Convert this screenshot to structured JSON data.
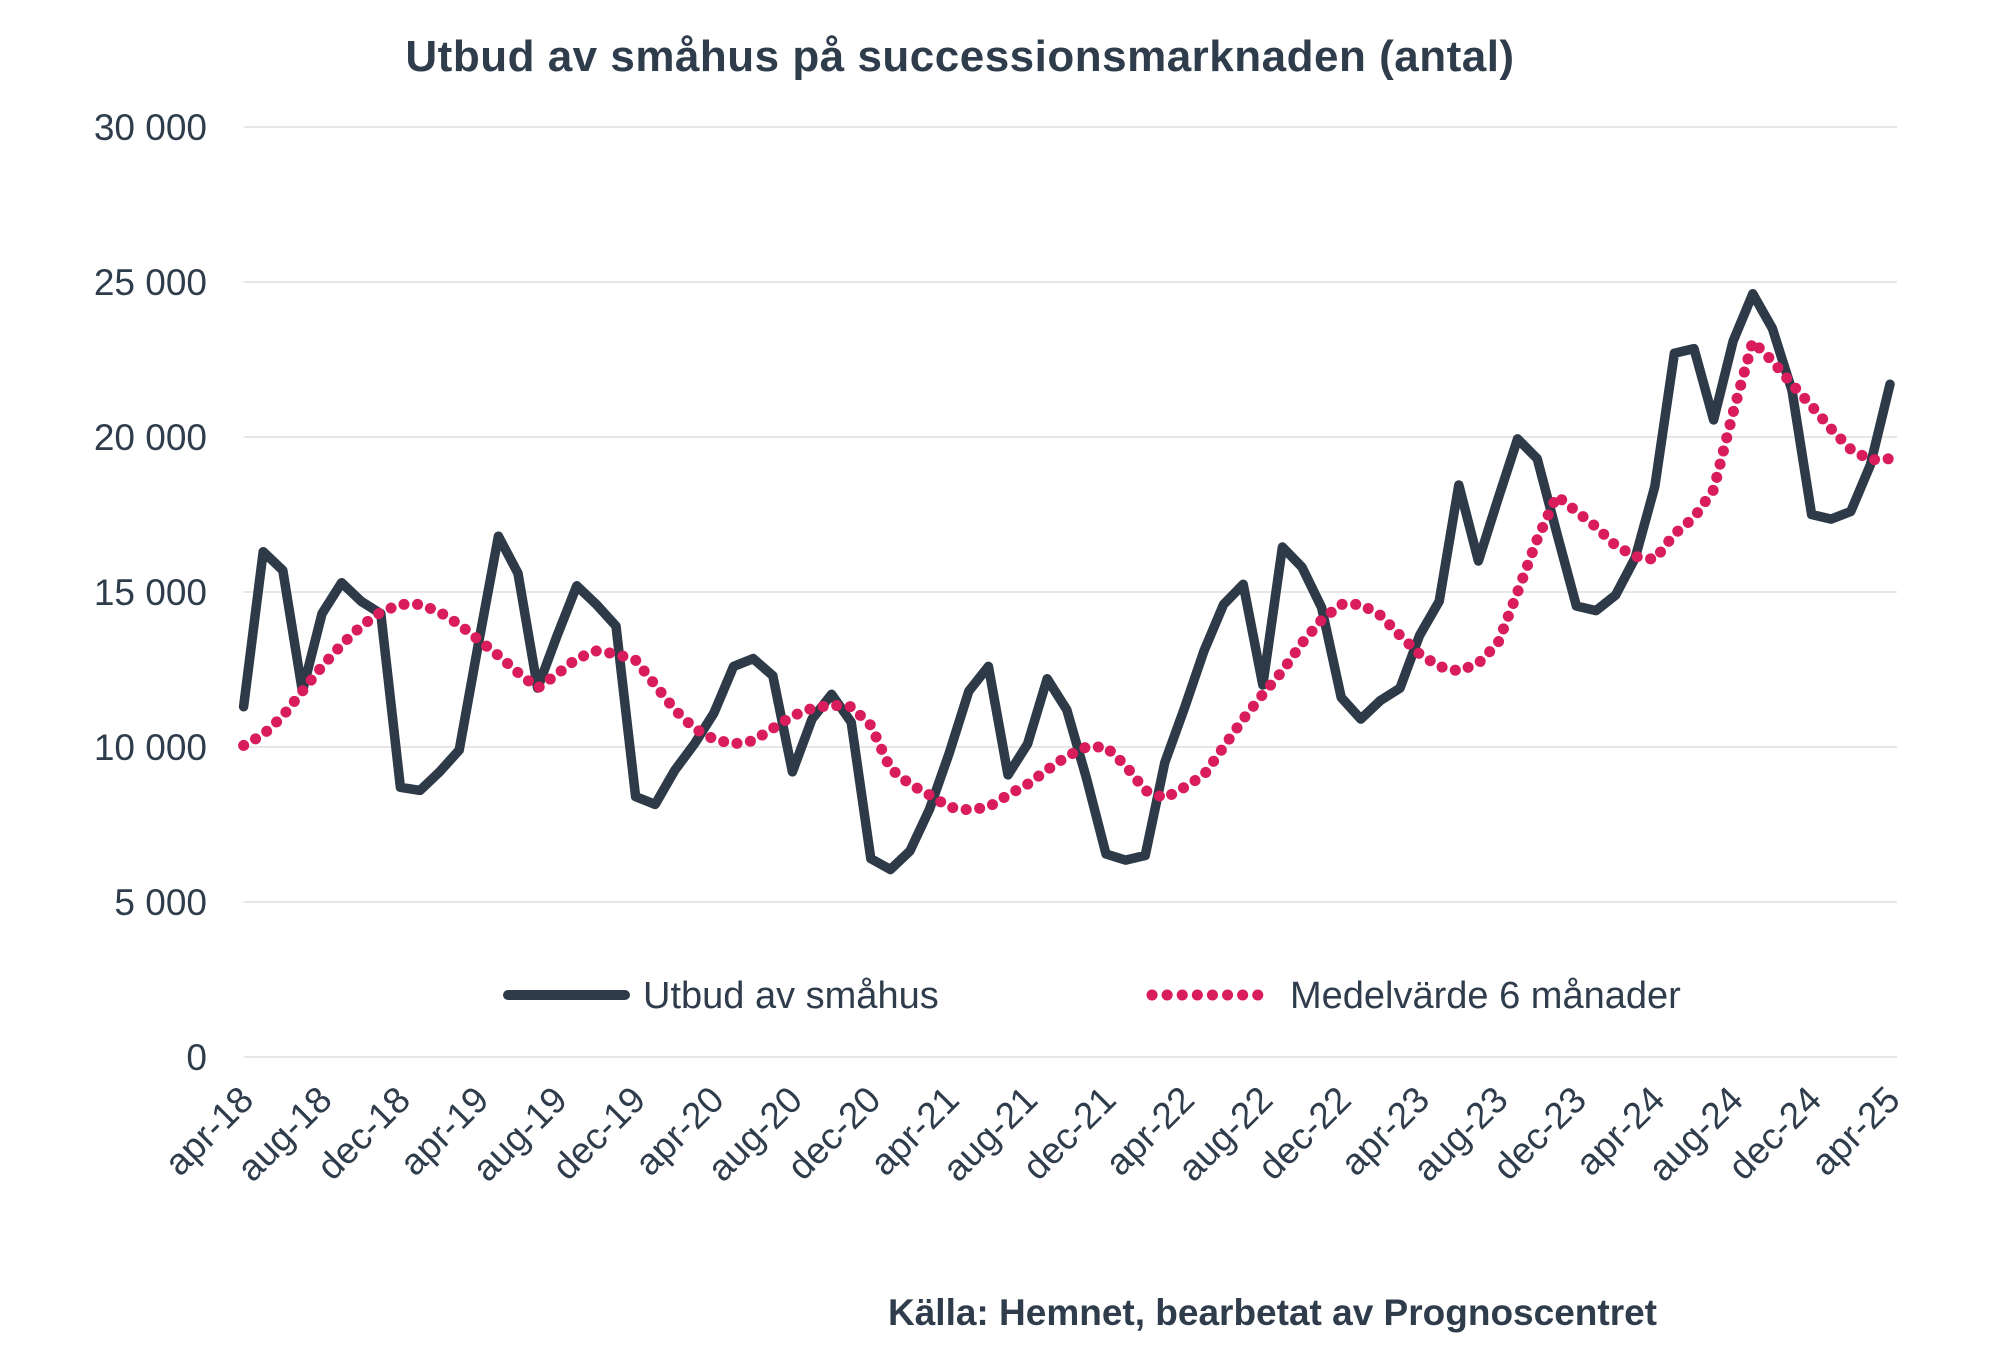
{
  "title": "Utbud av småhus på successionsmarknaden (antal)",
  "source": "Källa: Hemnet, bearbetat av Prognoscentret",
  "chart_data": {
    "type": "line",
    "x_start": "apr-18",
    "x_end": "apr-25",
    "months_total": 85,
    "x_tick_every": 4,
    "x_tick_labels": [
      "apr-18",
      "aug-18",
      "dec-18",
      "apr-19",
      "aug-19",
      "dec-19",
      "apr-20",
      "aug-20",
      "dec-20",
      "apr-21",
      "aug-21",
      "dec-21",
      "apr-22",
      "aug-22",
      "dec-22",
      "apr-23",
      "aug-23",
      "dec-23",
      "apr-24",
      "aug-24",
      "dec-24",
      "apr-25"
    ],
    "ylim": [
      0,
      30000
    ],
    "y_tick_values": [
      0,
      5000,
      10000,
      15000,
      20000,
      25000,
      30000
    ],
    "y_tick_labels": [
      "0",
      "5 000",
      "10 000",
      "15 000",
      "20 000",
      "25 000",
      "30 000"
    ],
    "grid": "horizontal",
    "legend_position": "bottom-inside",
    "colors": {
      "utbud": "#2E3A47",
      "medel": "#D91C5C",
      "grid": "#E7E7E7",
      "text": "#2F3C4B"
    },
    "series": [
      {
        "name": "Utbud av småhus",
        "style": "solid",
        "color_key": "utbud",
        "values": [
          11300,
          16300,
          15700,
          11800,
          14300,
          15300,
          14700,
          14300,
          8700,
          8600,
          9200,
          9900,
          13400,
          16800,
          15600,
          11900,
          13600,
          15200,
          14600,
          13900,
          8400,
          8150,
          9250,
          10100,
          11100,
          12600,
          12850,
          12300,
          9200,
          10900,
          11700,
          10800,
          6400,
          6050,
          6650,
          8000,
          9800,
          11800,
          12600,
          9100,
          10100,
          12200,
          11200,
          9000,
          6550,
          6350,
          6500,
          9500,
          11250,
          13100,
          14600,
          15250,
          12000,
          16450,
          15800,
          14500,
          11600,
          10900,
          11500,
          11900,
          13600,
          14700,
          18450,
          16000,
          18000,
          19940,
          19300,
          16900,
          14550,
          14400,
          14900,
          16100,
          18400,
          22700,
          22850,
          20550,
          23100,
          24620,
          23500,
          21500,
          17500,
          17350,
          17600,
          19100,
          21700
        ]
      },
      {
        "name": "Medelvärde 6 månader",
        "style": "dotted",
        "color_key": "medel",
        "values": [
          10050,
          10400,
          11000,
          11800,
          12600,
          13300,
          13900,
          14350,
          14600,
          14600,
          14350,
          13950,
          13450,
          12950,
          12400,
          11900,
          12350,
          12850,
          13100,
          13000,
          12800,
          12000,
          11200,
          10600,
          10250,
          10100,
          10200,
          10600,
          11000,
          11250,
          11350,
          11300,
          10700,
          9300,
          8800,
          8450,
          8060,
          7970,
          8060,
          8450,
          8800,
          9260,
          9700,
          10000,
          10000,
          9400,
          8600,
          8350,
          8700,
          9100,
          10000,
          10900,
          11700,
          12450,
          13350,
          14100,
          14600,
          14600,
          14250,
          13600,
          13000,
          12600,
          12450,
          12700,
          13350,
          15000,
          16700,
          18100,
          17600,
          17100,
          16500,
          16150,
          16050,
          16870,
          17400,
          18300,
          20800,
          23080,
          22450,
          21700,
          21000,
          20260,
          19600,
          19260,
          19300
        ]
      }
    ]
  }
}
